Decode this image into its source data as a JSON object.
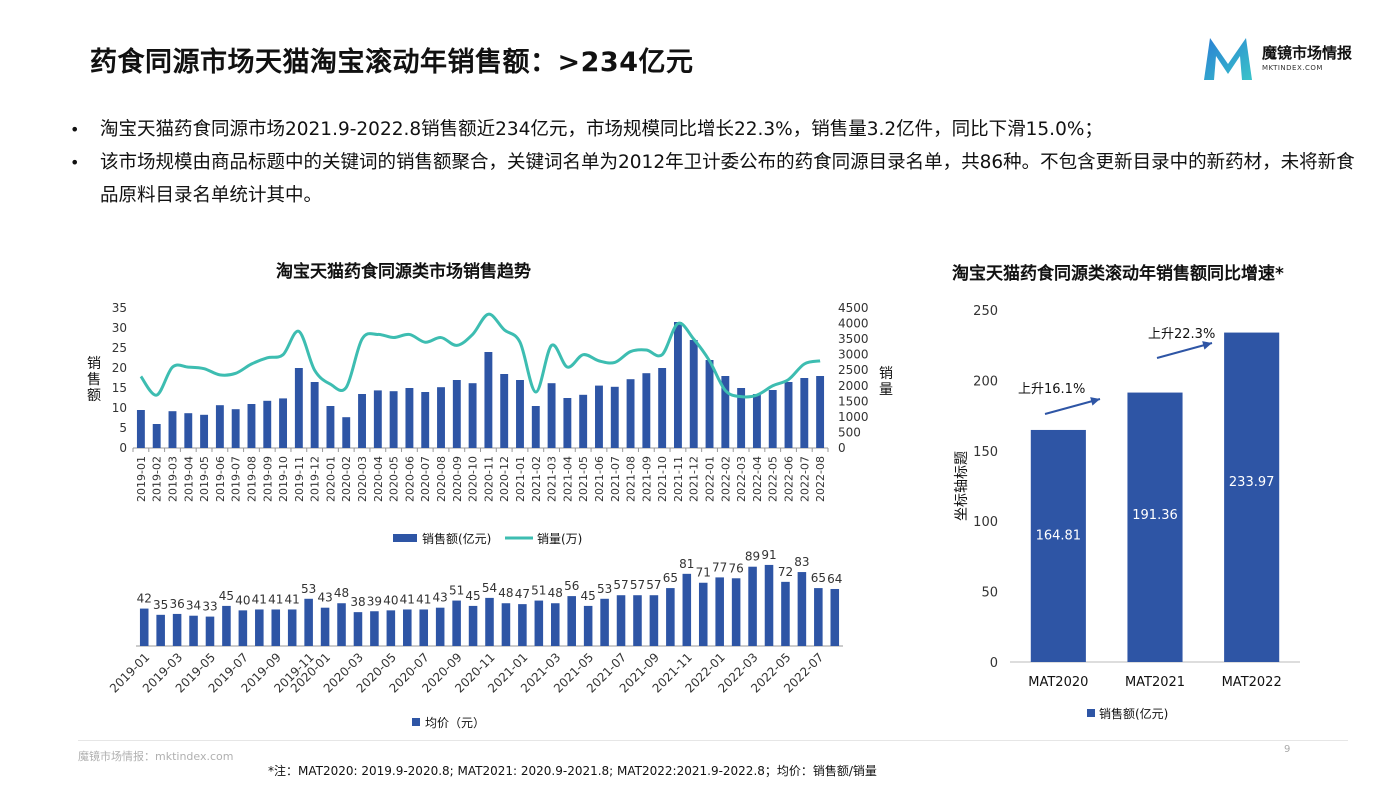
{
  "page": {
    "title": "药食同源市场天猫淘宝滚动年销售额：>234亿元",
    "bullets": [
      "淘宝天猫药食同源市场2021.9-2022.8销售额近234亿元，市场规模同比增长22.3%，销售量3.2亿件，同比下滑15.0%；",
      "该市场规模由商品标题中的关键词的销售额聚合，关键词名单为2012年卫计委公布的药食同源目录名单，共86种。不包含更新目录中的新药材，未将新食品原料目录名单统计其中。"
    ],
    "bullet_mark": "•",
    "footer_source": "魔镜市场情报：mktindex.com",
    "page_number": "9",
    "footnote": "*注：MAT2020: 2019.9-2020.8; MAT2021: 2020.9-2021.8; MAT2022:2021.9-2022.8；均价：销售额/销量"
  },
  "logo": {
    "name": "魔镜市场情报",
    "url": "MKTINDEX.COM",
    "icon": "mirror-m-logo-icon"
  },
  "colors": {
    "bar": "#2e55a5",
    "line": "#3dbdb1",
    "arrow": "#2e55a5",
    "grid": "#d9d9d9"
  },
  "chart_data": [
    {
      "type": "bar+line",
      "title": "淘宝天猫药食同源类市场销售趋势",
      "ylabel_left": "销售额",
      "ylabel_right": "销量",
      "ylim_left": [
        0,
        35
      ],
      "ylim_right": [
        0,
        4500
      ],
      "yticks_left": [
        0,
        5,
        10,
        15,
        20,
        25,
        30,
        35
      ],
      "yticks_right": [
        0,
        500,
        1000,
        1500,
        2000,
        2500,
        3000,
        3500,
        4000,
        4500
      ],
      "legend_placement": "bottom",
      "grid": false,
      "categories": [
        "2019-01",
        "2019-02",
        "2019-03",
        "2019-04",
        "2019-05",
        "2019-06",
        "2019-07",
        "2019-08",
        "2019-09",
        "2019-10",
        "2019-11",
        "2019-12",
        "2020-01",
        "2020-02",
        "2020-03",
        "2020-04",
        "2020-05",
        "2020-06",
        "2020-07",
        "2020-08",
        "2020-09",
        "2020-10",
        "2020-11",
        "2020-12",
        "2021-01",
        "2021-02",
        "2021-03",
        "2021-04",
        "2021-05",
        "2021-06",
        "2021-07",
        "2021-08",
        "2021-09",
        "2021-10",
        "2021-11",
        "2021-12",
        "2022-01",
        "2022-02",
        "2022-03",
        "2022-04",
        "2022-05",
        "2022-06",
        "2022-07",
        "2022-08"
      ],
      "series": [
        {
          "name": "销售额(亿元)",
          "kind": "bar",
          "values": [
            9.5,
            6,
            9.2,
            8.7,
            8.3,
            10.7,
            9.7,
            11,
            11.8,
            12.4,
            20,
            16.5,
            10.5,
            7.7,
            13.5,
            14.4,
            14.2,
            15,
            14,
            15.2,
            17,
            16.2,
            24,
            18.5,
            17,
            10.5,
            16.2,
            12.5,
            13.3,
            15.6,
            15.3,
            17.2,
            18.7,
            20,
            31.5,
            27,
            22,
            18,
            15,
            13.5,
            14.5,
            16.5,
            17.5,
            18
          ]
        },
        {
          "name": "销量(万)",
          "kind": "line",
          "values": [
            2300,
            1700,
            2600,
            2600,
            2550,
            2350,
            2400,
            2700,
            2900,
            3000,
            3750,
            2500,
            2050,
            1950,
            3500,
            3650,
            3550,
            3650,
            3400,
            3550,
            3300,
            3650,
            4300,
            3800,
            3400,
            1800,
            3300,
            2600,
            3000,
            2800,
            2750,
            3100,
            3150,
            3000,
            4000,
            3500,
            2800,
            1850,
            1650,
            1700,
            2000,
            2200,
            2700,
            2800
          ]
        }
      ]
    },
    {
      "type": "bar",
      "series": [
        {
          "name": "均价（元）",
          "values": [
            42,
            35,
            36,
            34,
            33,
            45,
            40,
            41,
            41,
            41,
            53,
            43,
            48,
            38,
            39,
            40,
            41,
            41,
            43,
            51,
            45,
            54,
            48,
            47,
            51,
            48,
            56,
            45,
            53,
            57,
            57,
            57,
            65,
            81,
            71,
            77,
            76,
            89,
            91,
            72,
            83,
            65,
            64
          ]
        }
      ],
      "categories": [
        "2019-01",
        "2019-02",
        "2019-03",
        "2019-04",
        "2019-05",
        "2019-06",
        "2019-07",
        "2019-08",
        "2019-09",
        "2019-10",
        "2019-11",
        "2020-01",
        "2020-02",
        "2020-03",
        "2020-04",
        "2020-05",
        "2020-06",
        "2020-07",
        "2020-08",
        "2020-09",
        "2020-10",
        "2020-11",
        "2020-12",
        "2021-01",
        "2021-02",
        "2021-03",
        "2021-04",
        "2021-05",
        "2021-06",
        "2021-07",
        "2021-08",
        "2021-09",
        "2021-10",
        "2021-11",
        "2021-12",
        "2022-01",
        "2022-02",
        "2022-03",
        "2022-04",
        "2022-05",
        "2022-06",
        "2022-07",
        "2022-08"
      ],
      "tick_labels": [
        "2019-01",
        "2019-03",
        "2019-05",
        "2019-07",
        "2019-09",
        "2019-11",
        "2020-01",
        "2020-03",
        "2020-05",
        "2020-07",
        "2020-09",
        "2020-11",
        "2021-01",
        "2021-03",
        "2021-05",
        "2021-07",
        "2021-09",
        "2021-11",
        "2022-01",
        "2022-03",
        "2022-05",
        "2022-07"
      ],
      "data_labels": true,
      "legend_placement": "bottom"
    },
    {
      "type": "bar",
      "title": "淘宝天猫药食同源类滚动年销售额同比增速*",
      "categories": [
        "MAT2020",
        "MAT2021",
        "MAT2022"
      ],
      "values": [
        164.81,
        191.36,
        233.97
      ],
      "value_labels": [
        "164.81",
        "191.36",
        "233.97"
      ],
      "series_name": "销售额(亿元)",
      "ylabel": "坐标轴标题",
      "ylim": [
        0,
        250
      ],
      "yticks": [
        0,
        50,
        100,
        150,
        200,
        250
      ],
      "annotations": [
        "上升16.1%",
        "上升22.3%"
      ],
      "legend_placement": "bottom"
    }
  ]
}
